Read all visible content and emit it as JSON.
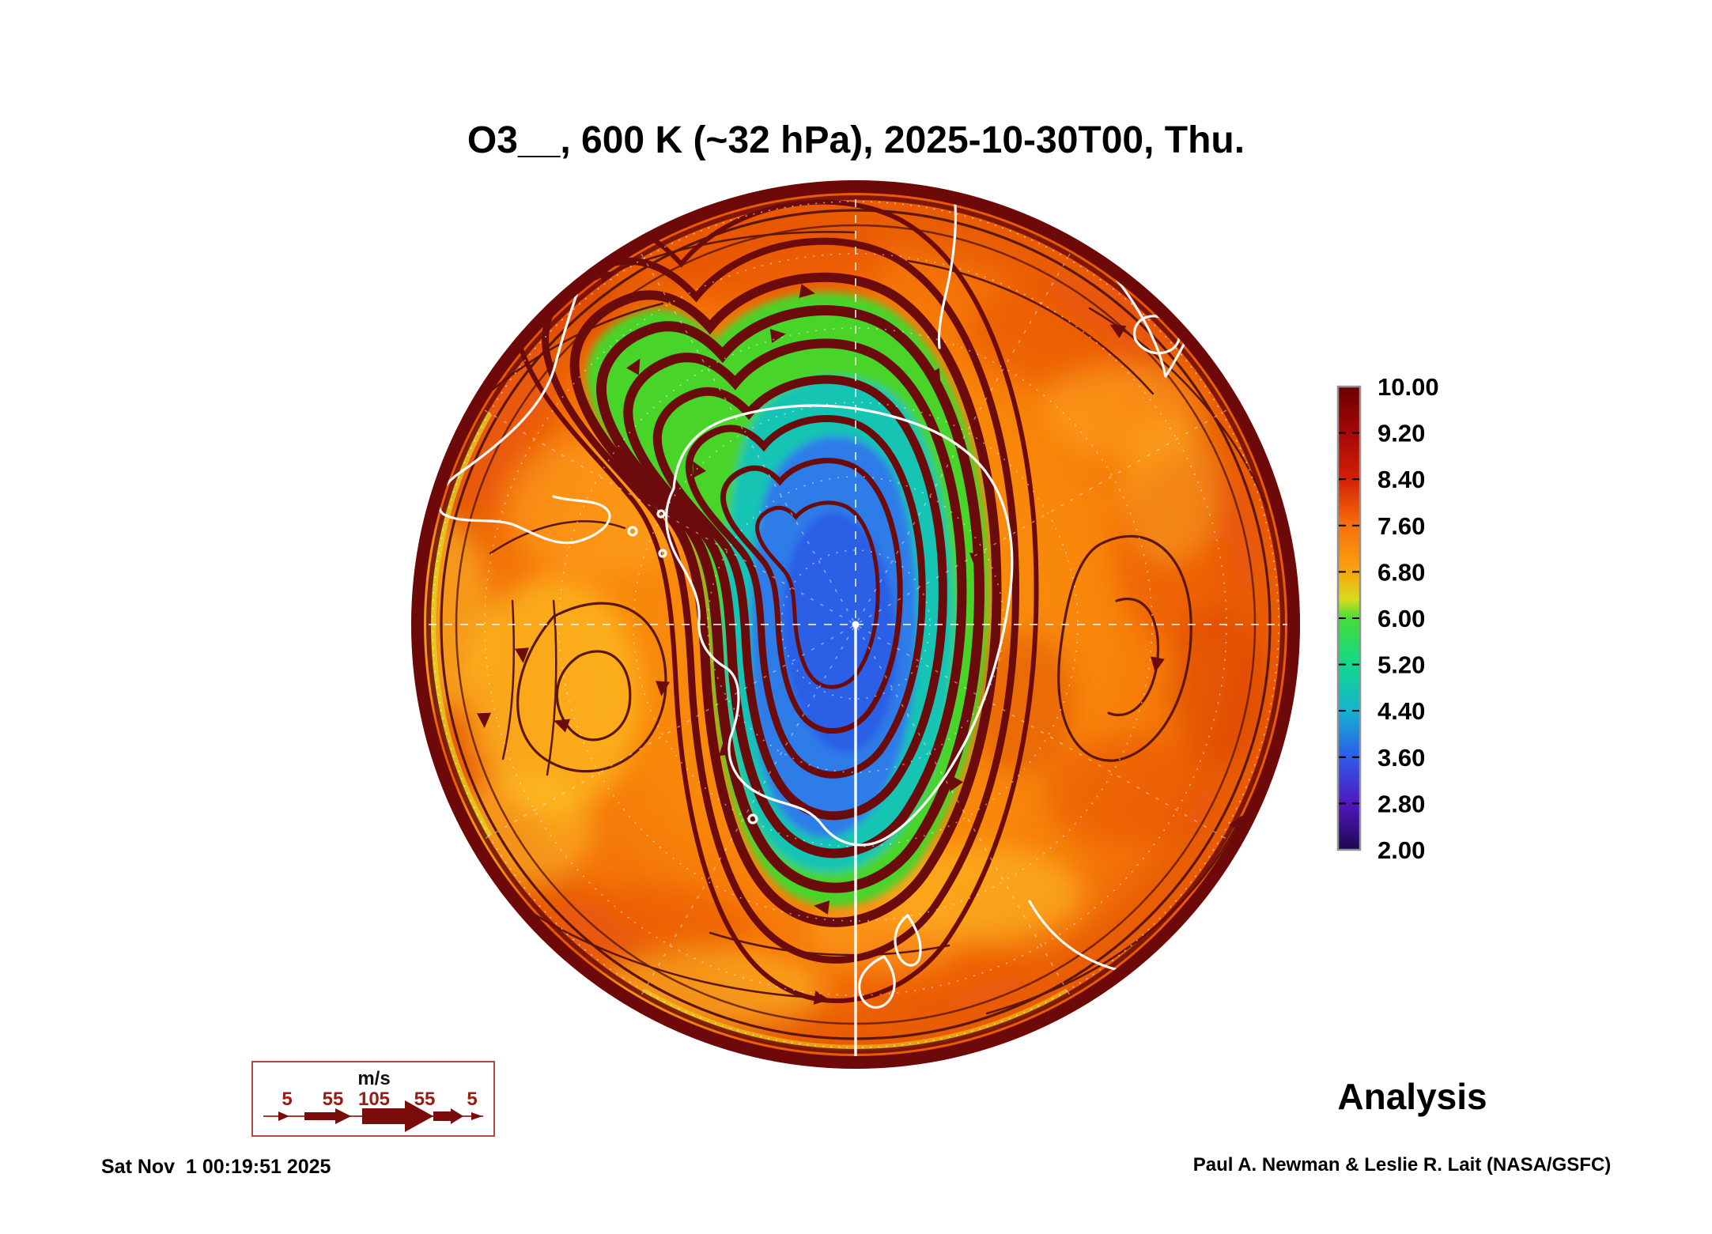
{
  "title": "O3__, 600 K (~32 hPa), 2025-10-30T00, Thu.",
  "footer": {
    "timestamp": "Sat Nov  1 00:19:51 2025",
    "credit": "Paul A. Newman & Leslie R. Lait (NASA/GSFC)",
    "mode_label": "Analysis"
  },
  "chart_data": {
    "type": "heatmap",
    "title": "O3__, 600 K (~32 hPa), 2025-10-30T00, Thu.",
    "quantity": "Ozone mixing ratio (ppmv) with wind streamlines",
    "level": "600 K (~32 hPa)",
    "valid_time": "2025-10-30T00 (Thu.)",
    "projection": "Southern Hemisphere polar stereographic, South Pole centered",
    "data_source_label": "Analysis",
    "colorbar": {
      "orientation": "vertical",
      "min": 2.0,
      "max": 10.0,
      "ticks": [
        "10.00",
        "9.20",
        "8.40",
        "7.60",
        "6.80",
        "6.00",
        "5.20",
        "4.40",
        "3.60",
        "2.80",
        "2.00"
      ],
      "gradient_top_to_bottom": [
        {
          "offset": "0%",
          "color": "#6B0000"
        },
        {
          "offset": "6%",
          "color": "#8F0404"
        },
        {
          "offset": "10%",
          "color": "#A40808"
        },
        {
          "offset": "20%",
          "color": "#D51F05"
        },
        {
          "offset": "30%",
          "color": "#F8700C"
        },
        {
          "offset": "40%",
          "color": "#F9A40E"
        },
        {
          "offset": "46%",
          "color": "#D8DC1E"
        },
        {
          "offset": "50%",
          "color": "#46DC3A"
        },
        {
          "offset": "60%",
          "color": "#12D88A"
        },
        {
          "offset": "70%",
          "color": "#16B2D0"
        },
        {
          "offset": "80%",
          "color": "#2E5BEA"
        },
        {
          "offset": "90%",
          "color": "#5018C0"
        },
        {
          "offset": "100%",
          "color": "#1E0850"
        }
      ]
    },
    "wind_legend": {
      "units": "m/s",
      "speeds": [
        "5",
        "55",
        "105",
        "55",
        "5"
      ]
    },
    "map_features": [
      "Antarctica",
      "South America",
      "Africa",
      "Madagascar",
      "Australia",
      "New Zealand"
    ],
    "field_summary": {
      "background_ppmv": "7.5-9.5 (orange/red collar)",
      "vortex_edge_ppmv": "5-6.5 (green/cyan ring)",
      "polar_vortex_core_ppmv": "2.5-4 (blue, ozone hole offset from pole)"
    }
  },
  "colors": {
    "page_bg": "#FFFFFF",
    "text": "#000000",
    "streamline": "#6B0B0B",
    "streamline_thin": "#5A1708",
    "rim": "#6E0909",
    "coastline": "#FFFFFF",
    "graticule": "#FFFFFF",
    "field_base": "#F8860A",
    "field_red": "#E8500A",
    "field_yellow": "#FFC928",
    "vortex_green": "#49D42C",
    "vortex_cyan": "#16C4B4",
    "vortex_blue": "#2F7CE8",
    "vortex_core": "#2B5CE6",
    "wind_text": "#9B1B12",
    "legend_border": "#B24A40",
    "cbar_frame": "#909090"
  }
}
